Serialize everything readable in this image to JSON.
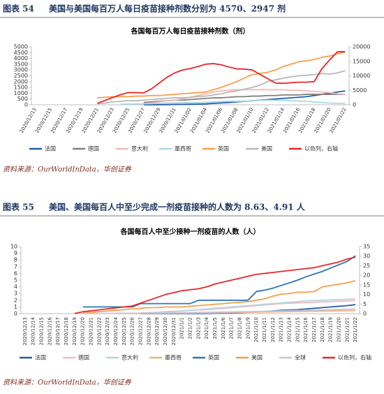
{
  "captions": [
    {
      "label": "图表 54",
      "title": "美国与美国每百万人每日疫苗接种剂数分别为 4570、2947 剂",
      "source": "资料来源：OurWorldInData，华创证券"
    },
    {
      "label": "图表 55",
      "title": "美国、美国每百人中至少完成一剂疫苗接种的人数为 8.63、4.91 人",
      "source": "资料来源：OurWorldInData，华创证券"
    }
  ],
  "chart_data": [
    {
      "type": "line",
      "title": "各国每百万人每日疫苗接种剂数（剂）",
      "categories": [
        "2020/12/13",
        null,
        "2020/12/15",
        null,
        "2020/12/17",
        null,
        "2020/12/19",
        null,
        "2020/12/21",
        null,
        "2020/12/23",
        null,
        "2020/12/25",
        null,
        "2020/12/27",
        null,
        "2020/12/29",
        null,
        "2020/12/31",
        null,
        "2021/01/02",
        null,
        "2021/01/04",
        null,
        "2021/01/06",
        null,
        "2021/01/08",
        null,
        "2021/01/10",
        null,
        "2021/01/12",
        null,
        "2021/01/14",
        null,
        "2021/01/16",
        null,
        "2021/01/18",
        null,
        "2021/01/20",
        null,
        "2021/01/22"
      ],
      "ylim": [
        0,
        5000
      ],
      "yticks": [
        0,
        500,
        1000,
        1500,
        2000,
        2500,
        3000,
        3500,
        4000,
        4500,
        5000
      ],
      "y2lim": [
        0,
        20000
      ],
      "y2ticks": [
        0,
        5000,
        10000,
        15000,
        20000
      ],
      "grid": false,
      "series": [
        {
          "name": "法国",
          "color": "#1f5fa8",
          "values": [
            null,
            null,
            null,
            null,
            null,
            null,
            null,
            null,
            null,
            null,
            null,
            null,
            null,
            null,
            0,
            0,
            10,
            20,
            30,
            40,
            50,
            60,
            80,
            120,
            160,
            200,
            250,
            300,
            350,
            400,
            450,
            500,
            550,
            600,
            650,
            700,
            800,
            900,
            1000,
            1100,
            1200
          ]
        },
        {
          "name": "德国",
          "color": "#808080",
          "values": [
            null,
            null,
            null,
            null,
            null,
            null,
            null,
            null,
            null,
            null,
            null,
            null,
            null,
            null,
            200,
            250,
            300,
            350,
            400,
            400,
            450,
            500,
            550,
            600,
            600,
            650,
            700,
            700,
            750,
            750,
            800,
            800,
            850,
            850,
            850,
            900,
            900,
            900,
            900,
            900,
            900
          ]
        },
        {
          "name": "意大利",
          "color": "#f2b8b8",
          "values": [
            null,
            null,
            null,
            null,
            null,
            null,
            null,
            null,
            null,
            null,
            null,
            null,
            null,
            null,
            100,
            150,
            250,
            350,
            400,
            500,
            650,
            800,
            950,
            1100,
            1200,
            1250,
            1300,
            1300,
            1300,
            1300,
            1300,
            1300,
            1300,
            1250,
            1250,
            1200,
            1150,
            1100,
            1050,
            950,
            900
          ]
        },
        {
          "name": "墨西哥",
          "color": "#a9d8e8",
          "values": [
            null,
            null,
            null,
            null,
            null,
            null,
            null,
            null,
            null,
            null,
            null,
            50,
            60,
            70,
            80,
            100,
            120,
            140,
            160,
            180,
            200,
            200,
            220,
            250,
            280,
            300,
            300,
            320,
            350,
            380,
            400,
            400,
            380,
            350,
            320,
            300,
            250,
            200,
            150,
            120,
            100
          ]
        },
        {
          "name": "英国",
          "color": "#f5a04a",
          "values": [
            null,
            null,
            null,
            null,
            null,
            null,
            null,
            null,
            600,
            650,
            700,
            700,
            700,
            750,
            750,
            800,
            800,
            850,
            900,
            950,
            1000,
            1050,
            1100,
            1300,
            1500,
            1750,
            2000,
            2300,
            2600,
            2700,
            2800,
            3000,
            3300,
            3500,
            3700,
            3800,
            3900,
            4100,
            4200,
            4400,
            4570
          ]
        },
        {
          "name": "美国",
          "color": "#b8b8b8",
          "values": [
            null,
            null,
            null,
            null,
            null,
            null,
            null,
            null,
            100,
            150,
            250,
            300,
            350,
            350,
            400,
            450,
            500,
            550,
            600,
            600,
            650,
            700,
            750,
            850,
            950,
            1100,
            1200,
            1350,
            1500,
            1700,
            2000,
            2150,
            2300,
            2400,
            2500,
            2550,
            2600,
            2700,
            2650,
            2750,
            2947
          ]
        },
        {
          "name": "以色列，右轴",
          "color": "#e8262a",
          "axis": "y2",
          "values": [
            null,
            null,
            null,
            null,
            null,
            null,
            null,
            null,
            500,
            1500,
            2500,
            3500,
            4200,
            4200,
            4100,
            5500,
            7500,
            9500,
            11000,
            12000,
            12500,
            13200,
            14000,
            14200,
            13800,
            13000,
            12400,
            12300,
            12000,
            10500,
            9000,
            7500,
            7400,
            7600,
            7800,
            7800,
            8000,
            12500,
            15500,
            18300,
            18300
          ]
        }
      ]
    },
    {
      "type": "line",
      "title": "各国每百人中至少接种一剂疫苗的人数（人）",
      "categories": [
        "2020/12/13",
        "2020/12/14",
        "2020/12/15",
        "2020/12/16",
        "2020/12/17",
        "2020/12/18",
        "2020/12/19",
        "2020/12/20",
        "2020/12/21",
        "2020/12/22",
        "2020/12/23",
        "2020/12/24",
        "2020/12/25",
        "2020/12/26",
        "2020/12/27",
        "2020/12/28",
        "2020/12/29",
        "2020/12/30",
        "2020/12/31",
        "2021/1/1",
        "2021/1/2",
        "2021/1/3",
        "2021/1/4",
        "2021/1/5",
        "2021/1/6",
        "2021/1/7",
        "2021/1/8",
        "2021/1/9",
        "2021/1/10",
        "2021/1/11",
        "2021/1/12",
        "2021/1/13",
        "2021/1/14",
        "2021/1/15",
        "2021/1/16",
        "2021/1/17",
        "2021/1/18",
        "2021/1/19",
        "2021/1/20",
        "2021/1/21",
        "2021/1/22"
      ],
      "ylim": [
        0,
        10
      ],
      "yticks": [
        0,
        1,
        2,
        3,
        4,
        5,
        6,
        7,
        8,
        9,
        10
      ],
      "y2lim": [
        0,
        35
      ],
      "y2ticks": [
        0,
        5,
        10,
        15,
        20,
        25,
        30,
        35
      ],
      "grid": false,
      "series": [
        {
          "name": "法国",
          "color": "#1f5fa8",
          "values": [
            null,
            null,
            null,
            null,
            null,
            null,
            null,
            null,
            null,
            null,
            null,
            null,
            null,
            null,
            0,
            0,
            0,
            0,
            0,
            0.01,
            0.01,
            0.02,
            0.03,
            0.05,
            0.08,
            0.1,
            0.15,
            0.2,
            0.25,
            0.3,
            0.4,
            0.5,
            0.55,
            0.6,
            0.7,
            0.8,
            0.9,
            1,
            1.1,
            1.2,
            1.35
          ]
        },
        {
          "name": "德国",
          "color": "#f4b6c2",
          "values": [
            null,
            null,
            null,
            null,
            null,
            null,
            null,
            null,
            null,
            null,
            null,
            null,
            null,
            null,
            0.1,
            0.15,
            0.2,
            0.3,
            0.35,
            0.4,
            0.5,
            0.55,
            0.6,
            0.7,
            0.8,
            0.9,
            1,
            1.1,
            1.2,
            1.3,
            1.4,
            1.5,
            1.55,
            1.6,
            1.65,
            1.7,
            1.75,
            1.8,
            1.85,
            1.9,
            1.95
          ]
        },
        {
          "name": "意大利",
          "color": "#b4d4e0",
          "values": [
            null,
            null,
            null,
            null,
            null,
            null,
            null,
            null,
            null,
            null,
            null,
            null,
            null,
            null,
            0.05,
            0.1,
            0.15,
            0.2,
            0.3,
            0.4,
            0.5,
            0.6,
            0.7,
            0.8,
            0.9,
            1,
            1.1,
            1.2,
            1.3,
            1.4,
            1.5,
            1.6,
            1.7,
            1.8,
            1.9,
            1.95,
            2,
            2.05,
            2.1,
            2.15,
            2.2
          ]
        },
        {
          "name": "墨西哥",
          "color": "#f0b27a",
          "values": [
            null,
            null,
            null,
            null,
            null,
            null,
            null,
            null,
            null,
            null,
            null,
            0.01,
            0.01,
            0.02,
            0.02,
            0.03,
            0.04,
            0.05,
            0.06,
            0.07,
            0.08,
            0.09,
            0.1,
            0.12,
            0.14,
            0.16,
            0.18,
            0.2,
            0.22,
            0.24,
            0.26,
            0.28,
            0.3,
            0.32,
            0.34,
            0.36,
            0.38,
            0.4,
            0.42,
            0.44,
            0.46
          ]
        },
        {
          "name": "英国",
          "color": "#2e75b6",
          "values": [
            null,
            null,
            null,
            null,
            null,
            null,
            null,
            1,
            1,
            1,
            1,
            1,
            1,
            1,
            1.5,
            1.5,
            1.5,
            1.5,
            1.5,
            1.5,
            1.5,
            2,
            2,
            2,
            2,
            2,
            2,
            2,
            3.3,
            3.5,
            3.8,
            4.2,
            4.6,
            5,
            5.5,
            5.9,
            6.3,
            6.8,
            7.3,
            7.8,
            8.63
          ]
        },
        {
          "name": "美国",
          "color": "#f5a04a",
          "values": [
            null,
            null,
            null,
            null,
            null,
            null,
            null,
            0.1,
            0.2,
            0.3,
            0.4,
            0.5,
            0.6,
            0.7,
            0.8,
            0.9,
            0.9,
            1,
            1,
            1,
            1.1,
            1.2,
            1.3,
            1.4,
            1.5,
            1.6,
            1.7,
            1.8,
            2,
            2.2,
            2.6,
            2.9,
            3,
            3.2,
            3.2,
            3.3,
            4,
            4.2,
            4.4,
            4.6,
            4.91
          ]
        },
        {
          "name": "全球",
          "color": "#c8c3dd",
          "values": [
            null,
            null,
            null,
            null,
            null,
            null,
            null,
            0.01,
            0.02,
            0.03,
            0.04,
            0.05,
            0.06,
            0.07,
            0.08,
            0.09,
            0.1,
            0.11,
            0.12,
            0.14,
            0.16,
            0.18,
            0.2,
            0.22,
            0.24,
            0.26,
            0.28,
            0.3,
            0.32,
            0.35,
            0.38,
            0.41,
            0.44,
            0.47,
            0.5,
            0.53,
            0.56,
            0.6,
            0.63,
            0.66,
            0.7
          ]
        },
        {
          "name": "以色列，右轴",
          "color": "#e8262a",
          "axis": "y2",
          "values": [
            null,
            null,
            null,
            null,
            null,
            null,
            0.1,
            1,
            1.5,
            2,
            2.5,
            3,
            3.5,
            4,
            5.5,
            7,
            8.5,
            10,
            11,
            12,
            12.5,
            13,
            14,
            15.5,
            16.5,
            17.5,
            18.5,
            19.5,
            20.5,
            21,
            21.5,
            22,
            22.5,
            23,
            23.5,
            24,
            25,
            26,
            27,
            28.5,
            29.5
          ]
        }
      ]
    }
  ]
}
